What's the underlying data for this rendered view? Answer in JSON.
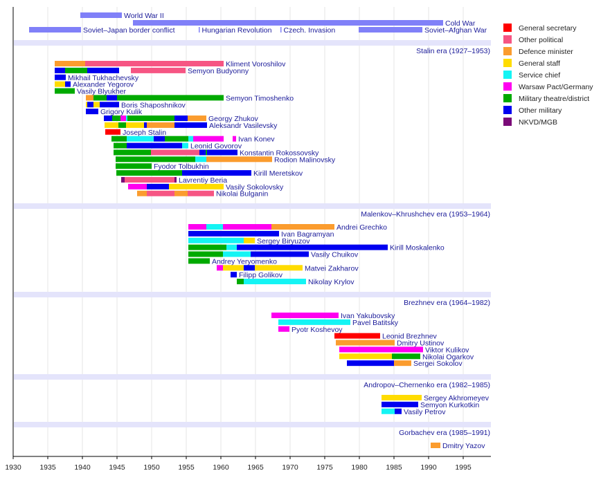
{
  "chart_data": {
    "type": "timeline",
    "xlim": [
      1930,
      1999
    ],
    "x_ticks": [
      1930,
      1935,
      1940,
      1945,
      1950,
      1955,
      1960,
      1965,
      1970,
      1975,
      1980,
      1985,
      1990,
      1995
    ],
    "grid": "vertical",
    "legend_position": "right",
    "roles": [
      {
        "key": "gs",
        "label": "General secretary",
        "color": "#ff0000"
      },
      {
        "key": "op",
        "label": "Other political",
        "color": "#f65583"
      },
      {
        "key": "dm",
        "label": "Defence minister",
        "color": "#fb9c2e"
      },
      {
        "key": "st",
        "label": "General staff",
        "color": "#ffdc00"
      },
      {
        "key": "sc",
        "label": "Service chief",
        "color": "#14f4f4"
      },
      {
        "key": "wp",
        "label": "Warsaw Pact/Germany",
        "color": "#ff00f0"
      },
      {
        "key": "mt",
        "label": "Military theatre/district",
        "color": "#00aa00"
      },
      {
        "key": "om",
        "label": "Other military",
        "color": "#0000f0"
      },
      {
        "key": "nk",
        "label": "NKVD/MGB",
        "color": "#7a0a78"
      }
    ],
    "event_color": "#8080f8",
    "events": [
      {
        "label": "World War II",
        "start": 1939.7,
        "end": 1945.7,
        "row": 0
      },
      {
        "label": "Cold War",
        "start": 1947.3,
        "end": 1992.1,
        "row": 1
      },
      {
        "label": "Soviet–Japan border conflict",
        "start": 1932.3,
        "end": 1939.8,
        "row": 2
      },
      {
        "label": "Hungarian Revolution",
        "start": 1956.8,
        "end": 1956.95,
        "row": 2
      },
      {
        "label": "Czech. Invasion",
        "start": 1968.6,
        "end": 1968.75,
        "row": 2
      },
      {
        "label": "Soviet–Afghan War",
        "start": 1979.9,
        "end": 1989.1,
        "row": 2
      }
    ],
    "eras": [
      {
        "label": "Stalin era (1927–1953)",
        "people": [
          {
            "name": "Kliment Voroshilov",
            "segments": [
              [
                1936.0,
                1940.4,
                "dm"
              ],
              [
                1940.4,
                1960.4,
                "op"
              ]
            ]
          },
          {
            "name": "Semyon Budyonny",
            "segments": [
              [
                1936.0,
                1937.5,
                "om"
              ],
              [
                1937.5,
                1940.7,
                "mt"
              ],
              [
                1940.7,
                1945.3,
                "om"
              ],
              [
                1947.0,
                1954.9,
                "op"
              ]
            ]
          },
          {
            "name": "Mikhail Tukhachevsky",
            "segments": [
              [
                1936.0,
                1937.6,
                "om"
              ]
            ]
          },
          {
            "name": "Alexander Yegorov",
            "segments": [
              [
                1936.0,
                1937.5,
                "st"
              ],
              [
                1937.5,
                1938.3,
                "om"
              ]
            ]
          },
          {
            "name": "Vasily Blyukher",
            "segments": [
              [
                1936.0,
                1938.9,
                "mt"
              ]
            ]
          },
          {
            "name": "Semyon Timoshenko",
            "segments": [
              [
                1940.5,
                1941.6,
                "dm"
              ],
              [
                1941.6,
                1943.5,
                "mt"
              ],
              [
                1943.5,
                1945.0,
                "om"
              ],
              [
                1945.0,
                1960.4,
                "mt"
              ]
            ]
          },
          {
            "name": "Boris Shaposhnikov",
            "segments": [
              [
                1940.5,
                1940.7,
                "st"
              ],
              [
                1940.7,
                1941.6,
                "om"
              ],
              [
                1941.6,
                1942.5,
                "st"
              ],
              [
                1942.5,
                1945.3,
                "om"
              ]
            ]
          },
          {
            "name": "Grigory Kulik",
            "segments": [
              [
                1940.5,
                1942.3,
                "om"
              ]
            ]
          },
          {
            "name": "Georgy Zhukov",
            "segments": [
              [
                1943.1,
                1944.3,
                "om"
              ],
              [
                1944.3,
                1945.5,
                "mt"
              ],
              [
                1945.5,
                1946.3,
                "wp"
              ],
              [
                1946.3,
                1946.5,
                "sc"
              ],
              [
                1946.5,
                1953.3,
                "mt"
              ],
              [
                1953.3,
                1955.2,
                "om"
              ],
              [
                1955.2,
                1957.9,
                "dm"
              ]
            ]
          },
          {
            "name": "Aleksandr Vasilevsky",
            "segments": [
              [
                1943.2,
                1945.2,
                "st"
              ],
              [
                1945.2,
                1946.3,
                "mt"
              ],
              [
                1946.3,
                1948.9,
                "st"
              ],
              [
                1948.9,
                1949.3,
                "om"
              ],
              [
                1949.3,
                1953.3,
                "dm"
              ],
              [
                1953.3,
                1958.0,
                "om"
              ]
            ]
          },
          {
            "name": "Joseph Stalin",
            "segments": [
              [
                1943.3,
                1945.5,
                "gs"
              ]
            ]
          },
          {
            "name": "Ivan Konev",
            "segments": [
              [
                1944.2,
                1946.4,
                "mt"
              ],
              [
                1946.4,
                1950.3,
                "sc"
              ],
              [
                1950.3,
                1951.9,
                "om"
              ],
              [
                1951.9,
                1955.3,
                "mt"
              ],
              [
                1955.3,
                1956.0,
                "sc"
              ],
              [
                1956.0,
                1960.4,
                "wp"
              ],
              [
                1961.7,
                1962.2,
                "wp"
              ]
            ]
          },
          {
            "name": "Leonid Govorov",
            "segments": [
              [
                1944.5,
                1946.4,
                "mt"
              ],
              [
                1946.4,
                1954.4,
                "om"
              ],
              [
                1954.4,
                1955.3,
                "sc"
              ]
            ]
          },
          {
            "name": "Konstantin Rokossovsky",
            "segments": [
              [
                1944.5,
                1949.9,
                "mt"
              ],
              [
                1949.9,
                1956.9,
                "op"
              ],
              [
                1956.9,
                1957.8,
                "om"
              ],
              [
                1957.8,
                1958.0,
                "mt"
              ],
              [
                1958.0,
                1962.4,
                "om"
              ]
            ]
          },
          {
            "name": "Rodion Malinovsky",
            "segments": [
              [
                1944.8,
                1956.3,
                "mt"
              ],
              [
                1956.3,
                1957.9,
                "sc"
              ],
              [
                1957.9,
                1967.4,
                "dm"
              ]
            ]
          },
          {
            "name": "Fyodor Tolbukhin",
            "segments": [
              [
                1944.8,
                1950.0,
                "mt"
              ]
            ]
          },
          {
            "name": "Kirill Meretskov",
            "segments": [
              [
                1944.9,
                1954.4,
                "mt"
              ],
              [
                1954.4,
                1964.4,
                "om"
              ]
            ]
          },
          {
            "name": "Lavrentiy Beria",
            "segments": [
              [
                1945.6,
                1946.1,
                "nk"
              ],
              [
                1946.1,
                1953.3,
                "op"
              ],
              [
                1953.3,
                1953.6,
                "nk"
              ]
            ]
          },
          {
            "name": "Vasily Sokolovsky",
            "segments": [
              [
                1946.6,
                1949.3,
                "wp"
              ],
              [
                1949.3,
                1952.5,
                "om"
              ],
              [
                1952.5,
                1960.4,
                "st"
              ]
            ]
          },
          {
            "name": "Nikolai Bulganin",
            "segments": [
              [
                1947.9,
                1949.3,
                "dm"
              ],
              [
                1949.3,
                1953.3,
                "op"
              ],
              [
                1953.3,
                1955.2,
                "dm"
              ],
              [
                1955.2,
                1959.0,
                "op"
              ]
            ]
          }
        ]
      },
      {
        "label": "Malenkov–Khrushchev era (1953–1964)",
        "people": [
          {
            "name": "Andrei Grechko",
            "segments": [
              [
                1955.3,
                1957.9,
                "wp"
              ],
              [
                1957.9,
                1960.3,
                "sc"
              ],
              [
                1960.3,
                1967.3,
                "wp"
              ],
              [
                1967.3,
                1976.4,
                "dm"
              ]
            ]
          },
          {
            "name": "Ivan Bagramyan",
            "segments": [
              [
                1955.3,
                1968.4,
                "om"
              ]
            ]
          },
          {
            "name": "Sergey Biryuzov",
            "segments": [
              [
                1955.3,
                1963.3,
                "sc"
              ],
              [
                1963.3,
                1964.9,
                "st"
              ]
            ]
          },
          {
            "name": "Kirill Moskalenko",
            "segments": [
              [
                1955.3,
                1960.8,
                "mt"
              ],
              [
                1960.8,
                1962.3,
                "sc"
              ],
              [
                1962.3,
                1984.1,
                "om"
              ]
            ]
          },
          {
            "name": "Vasily Chuikov",
            "segments": [
              [
                1955.3,
                1960.3,
                "mt"
              ],
              [
                1960.3,
                1964.3,
                "sc"
              ],
              [
                1964.3,
                1972.7,
                "om"
              ]
            ]
          },
          {
            "name": "Andrey Yeryomenko",
            "segments": [
              [
                1955.3,
                1958.4,
                "mt"
              ]
            ]
          },
          {
            "name": "Matvei Zakharov",
            "segments": [
              [
                1959.4,
                1960.3,
                "wp"
              ],
              [
                1960.3,
                1963.3,
                "st"
              ],
              [
                1963.3,
                1964.9,
                "om"
              ],
              [
                1964.9,
                1971.8,
                "st"
              ]
            ]
          },
          {
            "name": "Filipp Golikov",
            "segments": [
              [
                1961.4,
                1962.3,
                "om"
              ]
            ]
          },
          {
            "name": "Nikolay Krylov",
            "segments": [
              [
                1962.3,
                1963.3,
                "mt"
              ],
              [
                1963.3,
                1972.3,
                "sc"
              ]
            ]
          }
        ]
      },
      {
        "label": "Brezhnev era (1964–1982)",
        "people": [
          {
            "name": "Ivan Yakubovsky",
            "segments": [
              [
                1967.3,
                1977.0,
                "wp"
              ]
            ]
          },
          {
            "name": "Pavel Batitsky",
            "segments": [
              [
                1968.3,
                1978.7,
                "sc"
              ]
            ]
          },
          {
            "name": "Pyotr Koshevoy",
            "segments": [
              [
                1968.3,
                1969.9,
                "wp"
              ]
            ]
          },
          {
            "name": "Leonid Brezhnev",
            "segments": [
              [
                1976.4,
                1983.0,
                "gs"
              ]
            ]
          },
          {
            "name": "Dmitry Ustinov",
            "segments": [
              [
                1976.6,
                1985.1,
                "dm"
              ]
            ]
          },
          {
            "name": "Viktor Kulikov",
            "segments": [
              [
                1977.1,
                1989.2,
                "wp"
              ]
            ]
          },
          {
            "name": "Nikolai Ogarkov",
            "segments": [
              [
                1977.1,
                1984.7,
                "st"
              ],
              [
                1984.7,
                1988.8,
                "mt"
              ]
            ]
          },
          {
            "name": "Sergei Sokolov",
            "segments": [
              [
                1978.2,
                1985.0,
                "om"
              ],
              [
                1985.0,
                1987.5,
                "dm"
              ]
            ]
          }
        ]
      },
      {
        "label": "Andropov–Chernenko era (1982–1985)",
        "people": [
          {
            "name": "Sergey Akhromeyev",
            "segments": [
              [
                1983.2,
                1989.0,
                "st"
              ]
            ]
          },
          {
            "name": "Semyon Kurkotkin",
            "segments": [
              [
                1983.2,
                1988.5,
                "om"
              ]
            ]
          },
          {
            "name": "Vasily Petrov",
            "segments": [
              [
                1983.2,
                1985.1,
                "sc"
              ],
              [
                1985.1,
                1986.1,
                "om"
              ]
            ]
          }
        ]
      },
      {
        "label": "Gorbachev era (1985–1991)",
        "people": [
          {
            "name": "Dmitry Yazov",
            "segments": [
              [
                1990.3,
                1991.7,
                "dm"
              ]
            ]
          }
        ]
      }
    ]
  }
}
